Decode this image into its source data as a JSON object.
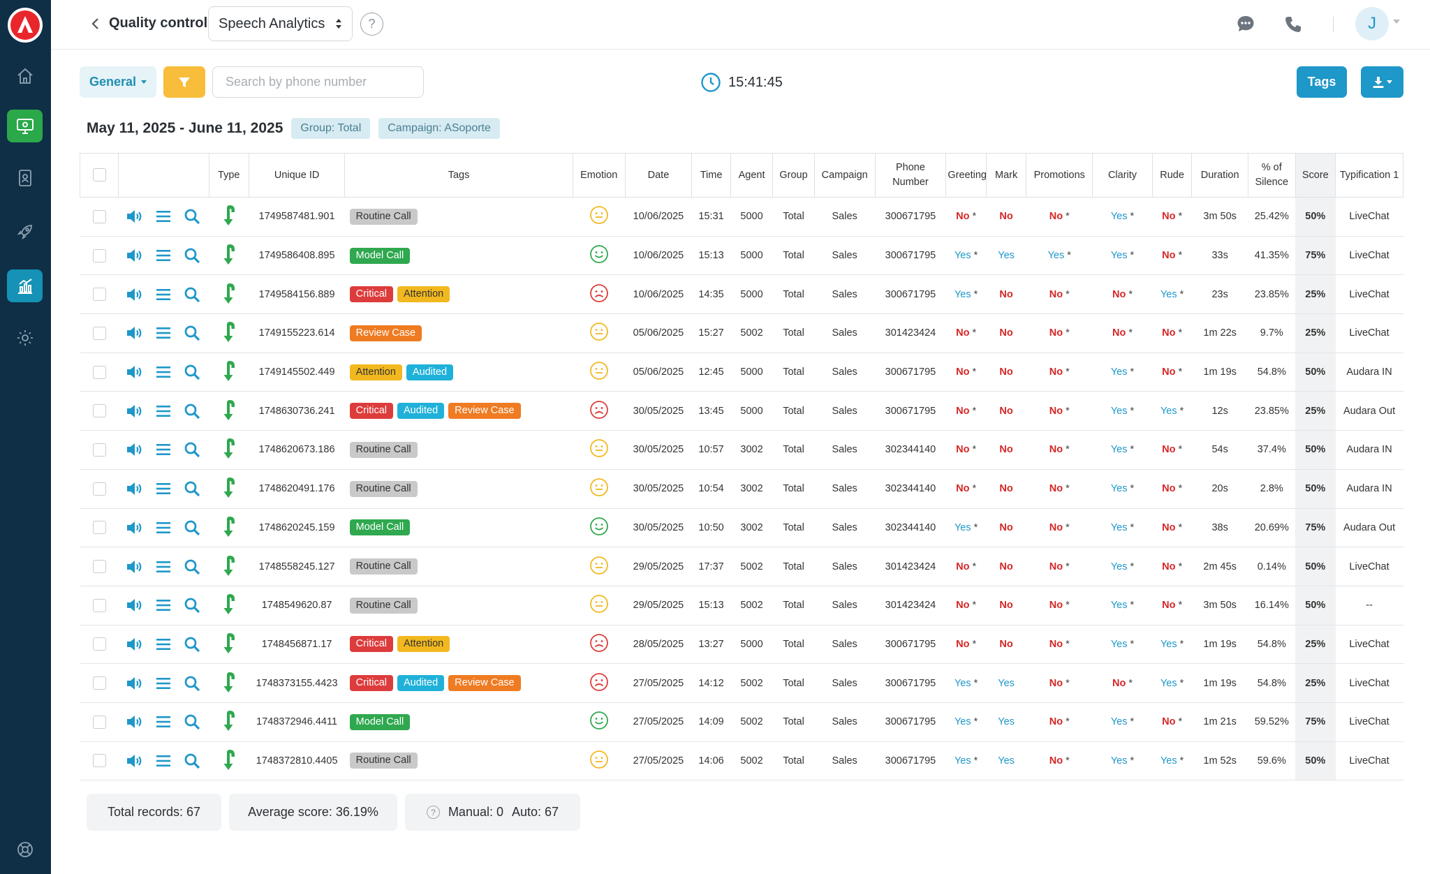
{
  "header": {
    "title": "Quality control",
    "module_select": "Speech Analytics",
    "help": "?",
    "avatar_initial": "J"
  },
  "toolbar": {
    "general_label": "General",
    "search_placeholder": "Search by phone number",
    "clock": "15:41:45",
    "tags_label": "Tags"
  },
  "range": {
    "date_range": "May 11, 2025 - June 11, 2025",
    "group_chip": "Group: Total",
    "campaign_chip": "Campaign: ASoporte"
  },
  "colors": {
    "sidebar": "#0f2f46",
    "accent": "#1e97c9",
    "filter": "#f7bd3b",
    "positive_green": "#2aa84a",
    "negative_red": "#d42626"
  },
  "columns": [
    "Type",
    "Unique ID",
    "Tags",
    "Emotion",
    "Date",
    "Time",
    "Agent",
    "Group",
    "Campaign",
    "Phone Number",
    "Greeting",
    "Mark",
    "Promotions",
    "Clarity",
    "Rude",
    "Duration",
    "% of Silence",
    "Score",
    "Typification 1"
  ],
  "rows": [
    {
      "id": "1749587481.901",
      "tags": [
        {
          "label": "Routine Call",
          "color": "gray"
        }
      ],
      "emotion": "neutral",
      "date": "10/06/2025",
      "time": "15:31",
      "agent": "5000",
      "group": "Total",
      "campaign": "Sales",
      "phone": "300671795",
      "greeting": "No",
      "greeting_star": true,
      "mark": "No",
      "promotions": "No",
      "clarity": "Yes",
      "rude": "No",
      "duration": "3m 50s",
      "silence": "25.42%",
      "score": "50%",
      "typification": "LiveChat"
    },
    {
      "id": "1749586408.895",
      "tags": [
        {
          "label": "Model Call",
          "color": "green"
        }
      ],
      "emotion": "happy",
      "date": "10/06/2025",
      "time": "15:13",
      "agent": "5000",
      "group": "Total",
      "campaign": "Sales",
      "phone": "300671795",
      "greeting": "Yes",
      "greeting_star": true,
      "mark": "Yes",
      "promotions": "Yes",
      "clarity": "Yes",
      "rude": "No",
      "duration": "33s",
      "silence": "41.35%",
      "score": "75%",
      "typification": "LiveChat"
    },
    {
      "id": "1749584156.889",
      "tags": [
        {
          "label": "Critical",
          "color": "red"
        },
        {
          "label": "Attention",
          "color": "yellow"
        }
      ],
      "emotion": "sad",
      "date": "10/06/2025",
      "time": "14:35",
      "agent": "5000",
      "group": "Total",
      "campaign": "Sales",
      "phone": "300671795",
      "greeting": "Yes",
      "greeting_star": true,
      "mark": "No",
      "promotions": "No",
      "clarity": "No",
      "rude": "Yes",
      "duration": "23s",
      "silence": "23.85%",
      "score": "25%",
      "typification": "LiveChat"
    },
    {
      "id": "1749155223.614",
      "tags": [
        {
          "label": "Review Case",
          "color": "orange"
        }
      ],
      "emotion": "neutral",
      "date": "05/06/2025",
      "time": "15:27",
      "agent": "5002",
      "group": "Total",
      "campaign": "Sales",
      "phone": "301423424",
      "greeting": "No",
      "greeting_star": true,
      "mark": "No",
      "promotions": "No",
      "clarity": "No",
      "rude": "No",
      "duration": "1m 22s",
      "silence": "9.7%",
      "score": "25%",
      "typification": "LiveChat"
    },
    {
      "id": "1749145502.449",
      "tags": [
        {
          "label": "Attention",
          "color": "yellow"
        },
        {
          "label": "Audited",
          "color": "cyan"
        }
      ],
      "emotion": "neutral",
      "date": "05/06/2025",
      "time": "12:45",
      "agent": "5000",
      "group": "Total",
      "campaign": "Sales",
      "phone": "300671795",
      "greeting": "No",
      "greeting_star": true,
      "mark": "No",
      "promotions": "No",
      "clarity": "Yes",
      "rude": "No",
      "duration": "1m 19s",
      "silence": "54.8%",
      "score": "50%",
      "typification": "Audara IN"
    },
    {
      "id": "1748630736.241",
      "tags": [
        {
          "label": "Critical",
          "color": "red"
        },
        {
          "label": "Audited",
          "color": "cyan"
        },
        {
          "label": "Review Case",
          "color": "orange"
        }
      ],
      "emotion": "sad",
      "date": "30/05/2025",
      "time": "13:45",
      "agent": "5000",
      "group": "Total",
      "campaign": "Sales",
      "phone": "300671795",
      "greeting": "No",
      "greeting_star": true,
      "mark": "No",
      "promotions": "No",
      "clarity": "Yes",
      "rude": "Yes",
      "duration": "12s",
      "silence": "23.85%",
      "score": "25%",
      "typification": "Audara Out"
    },
    {
      "id": "1748620673.186",
      "tags": [
        {
          "label": "Routine Call",
          "color": "gray"
        }
      ],
      "emotion": "neutral",
      "date": "30/05/2025",
      "time": "10:57",
      "agent": "3002",
      "group": "Total",
      "campaign": "Sales",
      "phone": "302344140",
      "greeting": "No",
      "greeting_star": true,
      "mark": "No",
      "promotions": "No",
      "clarity": "Yes",
      "rude": "No",
      "duration": "54s",
      "silence": "37.4%",
      "score": "50%",
      "typification": "Audara IN"
    },
    {
      "id": "1748620491.176",
      "tags": [
        {
          "label": "Routine Call",
          "color": "gray"
        }
      ],
      "emotion": "neutral",
      "date": "30/05/2025",
      "time": "10:54",
      "agent": "3002",
      "group": "Total",
      "campaign": "Sales",
      "phone": "302344140",
      "greeting": "No",
      "greeting_star": true,
      "mark": "No",
      "promotions": "No",
      "clarity": "Yes",
      "rude": "No",
      "duration": "20s",
      "silence": "2.8%",
      "score": "50%",
      "typification": "Audara IN"
    },
    {
      "id": "1748620245.159",
      "tags": [
        {
          "label": "Model Call",
          "color": "green"
        }
      ],
      "emotion": "happy",
      "date": "30/05/2025",
      "time": "10:50",
      "agent": "3002",
      "group": "Total",
      "campaign": "Sales",
      "phone": "302344140",
      "greeting": "Yes",
      "greeting_star": true,
      "mark": "No",
      "promotions": "No",
      "clarity": "Yes",
      "rude": "No",
      "duration": "38s",
      "silence": "20.69%",
      "score": "75%",
      "typification": "Audara Out"
    },
    {
      "id": "1748558245.127",
      "tags": [
        {
          "label": "Routine Call",
          "color": "gray"
        }
      ],
      "emotion": "neutral",
      "date": "29/05/2025",
      "time": "17:37",
      "agent": "5002",
      "group": "Total",
      "campaign": "Sales",
      "phone": "301423424",
      "greeting": "No",
      "greeting_star": true,
      "mark": "No",
      "promotions": "No",
      "clarity": "Yes",
      "rude": "No",
      "duration": "2m 45s",
      "silence": "0.14%",
      "score": "50%",
      "typification": "LiveChat"
    },
    {
      "id": "1748549620.87",
      "tags": [
        {
          "label": "Routine Call",
          "color": "gray"
        }
      ],
      "emotion": "neutral",
      "date": "29/05/2025",
      "time": "15:13",
      "agent": "5002",
      "group": "Total",
      "campaign": "Sales",
      "phone": "301423424",
      "greeting": "No",
      "greeting_star": true,
      "mark": "No",
      "promotions": "No",
      "clarity": "Yes",
      "rude": "No",
      "duration": "3m 50s",
      "silence": "16.14%",
      "score": "50%",
      "typification": "--"
    },
    {
      "id": "1748456871.17",
      "tags": [
        {
          "label": "Critical",
          "color": "red"
        },
        {
          "label": "Attention",
          "color": "yellow"
        }
      ],
      "emotion": "sad",
      "date": "28/05/2025",
      "time": "13:27",
      "agent": "5000",
      "group": "Total",
      "campaign": "Sales",
      "phone": "300671795",
      "greeting": "No",
      "greeting_star": true,
      "mark": "No",
      "promotions": "No",
      "clarity": "Yes",
      "rude": "Yes",
      "duration": "1m 19s",
      "silence": "54.8%",
      "score": "25%",
      "typification": "LiveChat"
    },
    {
      "id": "1748373155.4423",
      "tags": [
        {
          "label": "Critical",
          "color": "red"
        },
        {
          "label": "Audited",
          "color": "cyan"
        },
        {
          "label": "Review Case",
          "color": "orange"
        }
      ],
      "emotion": "sad",
      "date": "27/05/2025",
      "time": "14:12",
      "agent": "5002",
      "group": "Total",
      "campaign": "Sales",
      "phone": "300671795",
      "greeting": "Yes",
      "greeting_star": true,
      "mark": "Yes",
      "promotions": "No",
      "clarity": "No",
      "rude": "Yes",
      "duration": "1m 19s",
      "silence": "54.8%",
      "score": "25%",
      "typification": "LiveChat"
    },
    {
      "id": "1748372946.4411",
      "tags": [
        {
          "label": "Model Call",
          "color": "green"
        }
      ],
      "emotion": "happy",
      "date": "27/05/2025",
      "time": "14:09",
      "agent": "5002",
      "group": "Total",
      "campaign": "Sales",
      "phone": "300671795",
      "greeting": "Yes",
      "greeting_star": true,
      "mark": "Yes",
      "promotions": "No",
      "clarity": "Yes",
      "rude": "No",
      "duration": "1m 21s",
      "silence": "59.52%",
      "score": "75%",
      "typification": "LiveChat"
    },
    {
      "id": "1748372810.4405",
      "tags": [
        {
          "label": "Routine Call",
          "color": "gray"
        }
      ],
      "emotion": "neutral",
      "date": "27/05/2025",
      "time": "14:06",
      "agent": "5002",
      "group": "Total",
      "campaign": "Sales",
      "phone": "300671795",
      "greeting": "Yes",
      "greeting_star": true,
      "mark": "Yes",
      "promotions": "No",
      "clarity": "Yes",
      "rude": "Yes",
      "duration": "1m 52s",
      "silence": "59.6%",
      "score": "50%",
      "typification": "LiveChat"
    }
  ],
  "summary": {
    "total_records": "Total records: 67",
    "average_score": "Average score: 36.19%",
    "manual": "Manual: 0",
    "auto": "Auto: 67",
    "help": "?"
  }
}
